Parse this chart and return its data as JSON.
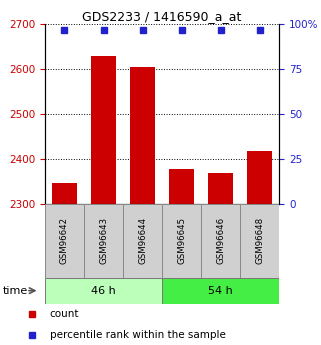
{
  "title": "GDS2233 / 1416590_a_at",
  "samples": [
    "GSM96642",
    "GSM96643",
    "GSM96644",
    "GSM96645",
    "GSM96646",
    "GSM96648"
  ],
  "counts": [
    2345,
    2628,
    2605,
    2378,
    2368,
    2418
  ],
  "percentile_ranks": [
    97,
    97,
    97,
    97,
    97,
    97
  ],
  "groups": [
    {
      "label": "46 h",
      "indices": [
        0,
        1,
        2
      ],
      "color": "#bbffbb"
    },
    {
      "label": "54 h",
      "indices": [
        3,
        4,
        5
      ],
      "color": "#44ee44"
    }
  ],
  "ylim_left": [
    2300,
    2700
  ],
  "ylim_right": [
    0,
    100
  ],
  "yticks_left": [
    2300,
    2400,
    2500,
    2600,
    2700
  ],
  "yticks_right": [
    0,
    25,
    50,
    75,
    100
  ],
  "bar_color": "#cc0000",
  "dot_color": "#2222cc",
  "bar_width": 0.65,
  "left_tick_color": "#cc0000",
  "right_tick_color": "#2222cc",
  "time_label": "time",
  "legend_count_label": "count",
  "legend_percentile_label": "percentile rank within the sample",
  "sample_box_color": "#d0d0d0",
  "fig_width": 3.21,
  "fig_height": 3.45,
  "dpi": 100
}
